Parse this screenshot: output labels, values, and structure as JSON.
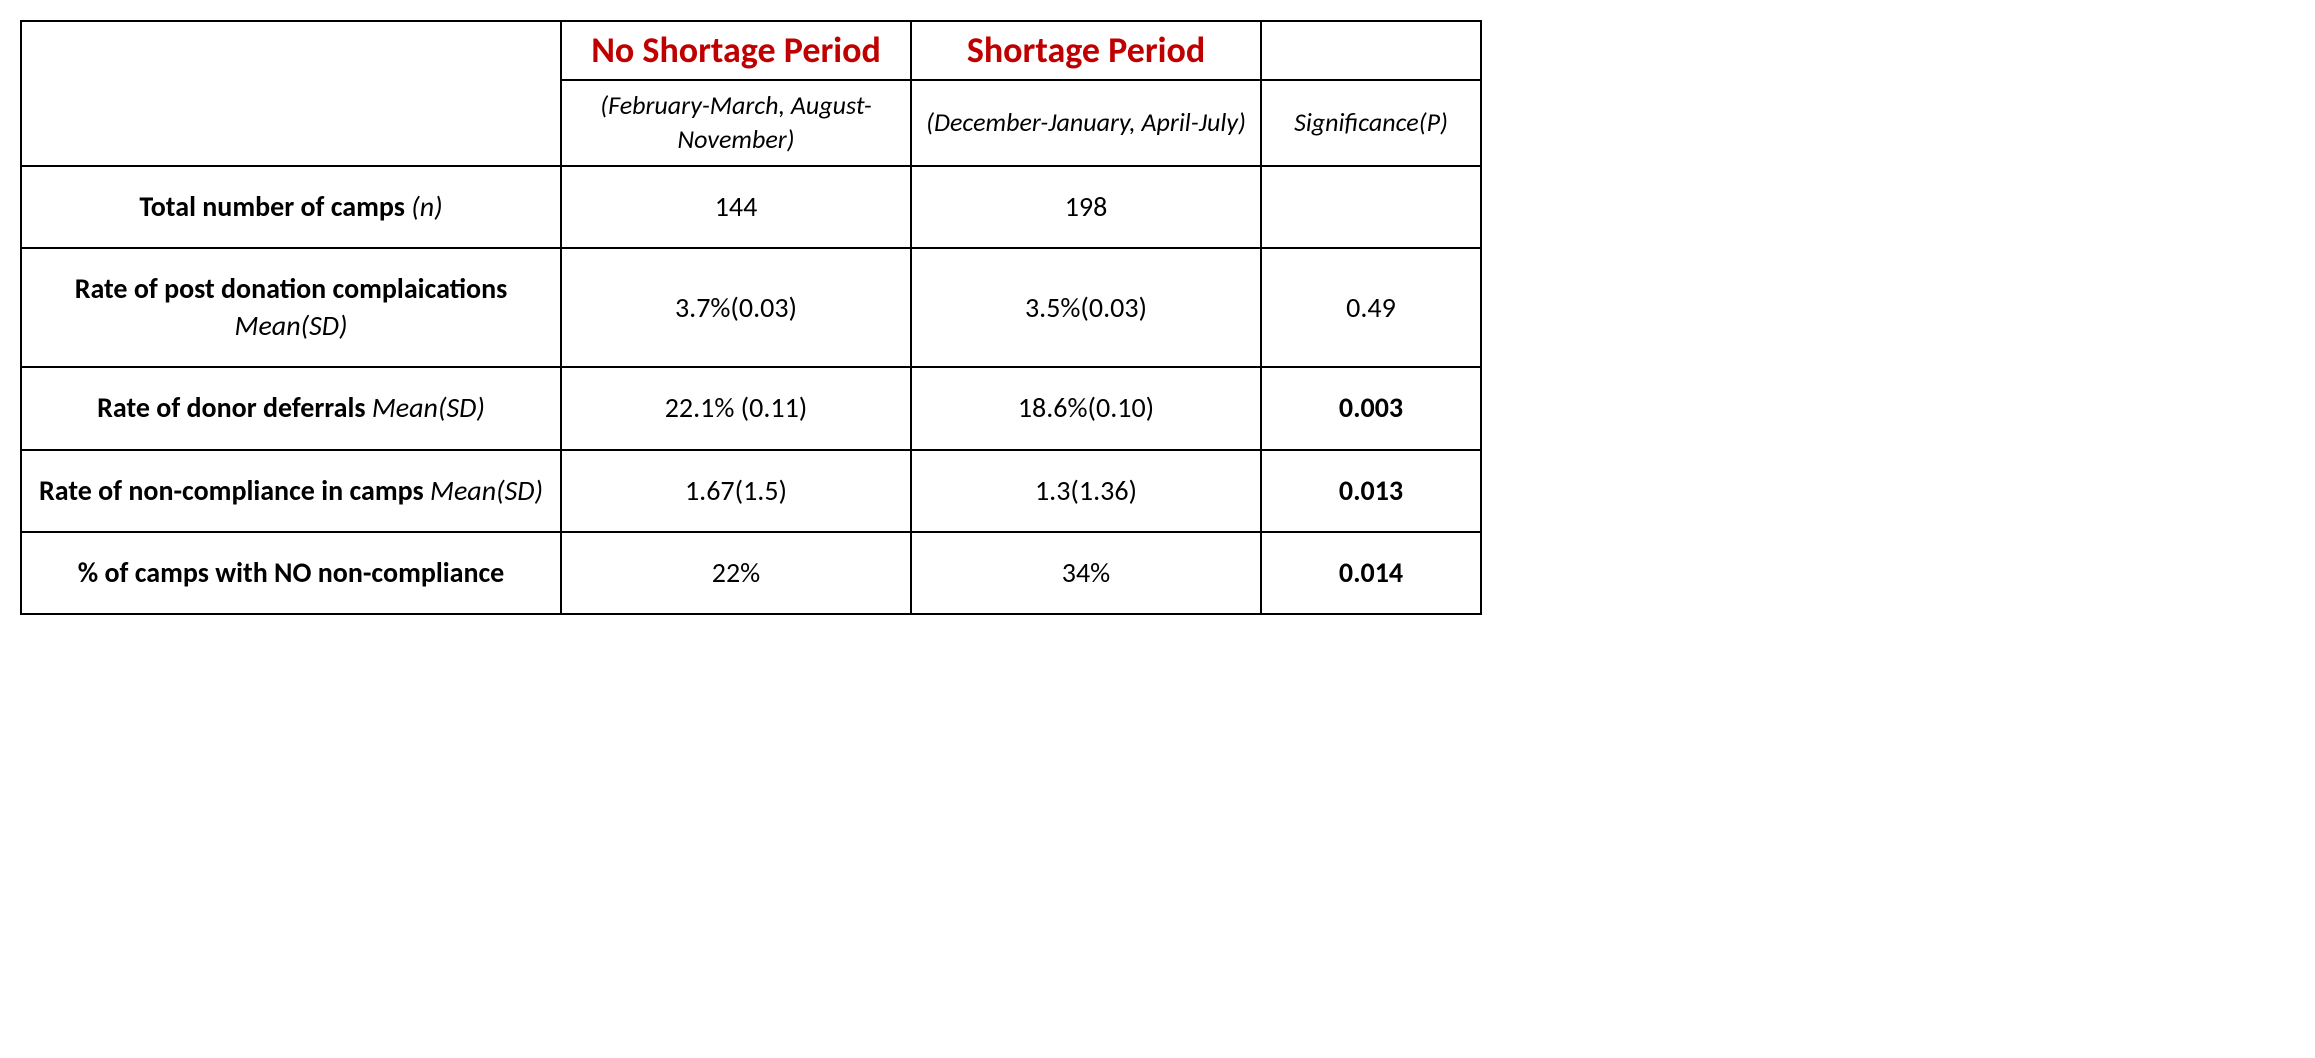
{
  "headers": {
    "col1_title": "No Shortage Period",
    "col2_title": "Shortage Period",
    "col1_sub": "(February-March, August-November)",
    "col2_sub": "(December-January, April-July)",
    "col3_sub": "Significance(P)"
  },
  "rows": [
    {
      "label_bold": "Total number of camps ",
      "label_italic": "(n)",
      "c1": "144",
      "c2": "198",
      "c3": "",
      "c3_bold": false
    },
    {
      "label_bold": "Rate of post donation complaications ",
      "label_italic": "Mean(SD)",
      "c1": "3.7%(0.03)",
      "c2": "3.5%(0.03)",
      "c3": "0.49",
      "c3_bold": false
    },
    {
      "label_bold": "Rate of donor deferrals ",
      "label_italic": "Mean(SD)",
      "c1": "22.1% (0.11)",
      "c2": "18.6%(0.10)",
      "c3": "0.003",
      "c3_bold": true
    },
    {
      "label_bold": "Rate of non-compliance in camps ",
      "label_italic": "Mean(SD)",
      "c1": "1.67(1.5)",
      "c2": "1.3(1.36)",
      "c3": "0.013",
      "c3_bold": true
    },
    {
      "label_bold": "% of camps with NO non-compliance",
      "label_italic": "",
      "c1": "22%",
      "c2": "34%",
      "c3": "0.014",
      "c3_bold": true
    }
  ],
  "colors": {
    "header_red": "#c00000",
    "border": "#000000",
    "text": "#000000",
    "background": "#ffffff"
  },
  "col_widths": {
    "label": 540,
    "col1": 350,
    "col2": 350,
    "col3": 220
  }
}
